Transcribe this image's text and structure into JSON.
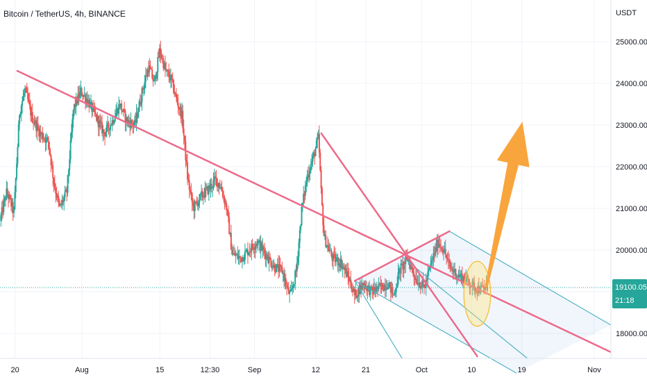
{
  "chart_data": {
    "type": "candlestick",
    "title": "Bitcoin / TetherUS, 4h, BINANCE",
    "currency": "USDT",
    "y_ticks": [
      18000,
      19000,
      20000,
      21000,
      22000,
      23000,
      24000,
      25000
    ],
    "y_tick_labels": [
      "18000.00",
      "19000.00",
      "20000.00",
      "21000.00",
      "22000.00",
      "23000.00",
      "24000.00",
      "25000.00"
    ],
    "ylim": [
      17400,
      26000
    ],
    "x_ticks": [
      {
        "day": 20,
        "label": "20"
      },
      {
        "day": 32,
        "label": "Aug"
      },
      {
        "day": 46,
        "label": "15"
      },
      {
        "day": 55,
        "label": "12:30"
      },
      {
        "day": 63,
        "label": "Sep"
      },
      {
        "day": 74,
        "label": "12"
      },
      {
        "day": 83,
        "label": "21"
      },
      {
        "day": 93,
        "label": "Oct"
      },
      {
        "day": 102,
        "label": "10"
      },
      {
        "day": 111,
        "label": "19"
      },
      {
        "day": 124,
        "label": "Nov"
      }
    ],
    "xlim": [
      17.3,
      127
    ],
    "last_price": "19100.05",
    "last_price_value": 19100.05,
    "countdown": "21:18",
    "colors": {
      "up": "#26a69a",
      "down": "#ef5350",
      "trend": "#ec6a8a",
      "channel": "#4fb3c4",
      "arrow": "#f9a53d",
      "circle": "#f7c34a",
      "badge": "#26a69a"
    },
    "path": [
      [
        17.3,
        20700
      ],
      [
        18.5,
        21400
      ],
      [
        19.8,
        20900
      ],
      [
        20.8,
        23300
      ],
      [
        21.8,
        23850
      ],
      [
        23.0,
        23200
      ],
      [
        24.5,
        22800
      ],
      [
        26.0,
        22600
      ],
      [
        27.0,
        21600
      ],
      [
        28.0,
        21000
      ],
      [
        29.3,
        21400
      ],
      [
        30.5,
        23400
      ],
      [
        31.8,
        23800
      ],
      [
        33.0,
        23600
      ],
      [
        34.5,
        23200
      ],
      [
        36.0,
        22800
      ],
      [
        37.5,
        23100
      ],
      [
        38.8,
        23500
      ],
      [
        40.0,
        23100
      ],
      [
        41.5,
        23000
      ],
      [
        43.0,
        23900
      ],
      [
        44.0,
        24400
      ],
      [
        45.0,
        24000
      ],
      [
        46.0,
        24800
      ],
      [
        47.0,
        24300
      ],
      [
        48.0,
        24100
      ],
      [
        49.0,
        23600
      ],
      [
        50.0,
        23200
      ],
      [
        51.0,
        21700
      ],
      [
        52.0,
        21000
      ],
      [
        53.5,
        21300
      ],
      [
        55.0,
        21500
      ],
      [
        56.0,
        21700
      ],
      [
        57.0,
        21500
      ],
      [
        58.0,
        21000
      ],
      [
        59.0,
        19900
      ],
      [
        60.5,
        19800
      ],
      [
        62.0,
        20000
      ],
      [
        63.5,
        20200
      ],
      [
        65.0,
        19900
      ],
      [
        66.5,
        19600
      ],
      [
        68.0,
        19500
      ],
      [
        69.0,
        19000
      ],
      [
        69.5,
        18900
      ],
      [
        70.5,
        19500
      ],
      [
        71.5,
        21000
      ],
      [
        72.5,
        21800
      ],
      [
        73.5,
        22200
      ],
      [
        74.5,
        22700
      ],
      [
        75.0,
        21300
      ],
      [
        75.5,
        20300
      ],
      [
        77.0,
        19800
      ],
      [
        78.5,
        19700
      ],
      [
        80.0,
        19300
      ],
      [
        81.0,
        18900
      ],
      [
        82.5,
        19200
      ],
      [
        84.0,
        19000
      ],
      [
        85.5,
        19100
      ],
      [
        87.0,
        19200
      ],
      [
        88.0,
        18900
      ],
      [
        89.0,
        19500
      ],
      [
        90.5,
        19800
      ],
      [
        92.0,
        19300
      ],
      [
        93.5,
        19100
      ],
      [
        95.0,
        19800
      ],
      [
        96.0,
        20200
      ],
      [
        97.0,
        20000
      ],
      [
        98.0,
        19600
      ],
      [
        99.5,
        19400
      ],
      [
        101.0,
        19300
      ],
      [
        102.5,
        19100
      ],
      [
        104.0,
        19050
      ],
      [
        104.8,
        19100
      ]
    ],
    "annotations": {
      "trendline_main": [
        [
          20.4,
          24300
        ],
        [
          127,
          17550
        ]
      ],
      "trendline_second": [
        [
          75.0,
          22800
        ],
        [
          103.0,
          17450
        ]
      ],
      "channel_base": [
        [
          81.0,
          19260
        ],
        [
          98.0,
          20450
        ]
      ],
      "channel_upper": [
        [
          98.0,
          20450
        ],
        [
          127,
          18200
        ]
      ],
      "channel_lower": [
        [
          81.0,
          19260
        ],
        [
          110,
          17050
        ]
      ],
      "channel_left": [
        [
          81.0,
          19260
        ],
        [
          89.5,
          17400
        ]
      ],
      "channel_mid": [
        [
          89.5,
          19840
        ],
        [
          112,
          17400
        ]
      ],
      "circle": {
        "day": 103.0,
        "price": 18950,
        "rx_days": 2.4,
        "ry_price": 780
      },
      "arrow": {
        "from": [
          104.6,
          19100
        ],
        "to": [
          111.1,
          23080
        ]
      }
    }
  }
}
